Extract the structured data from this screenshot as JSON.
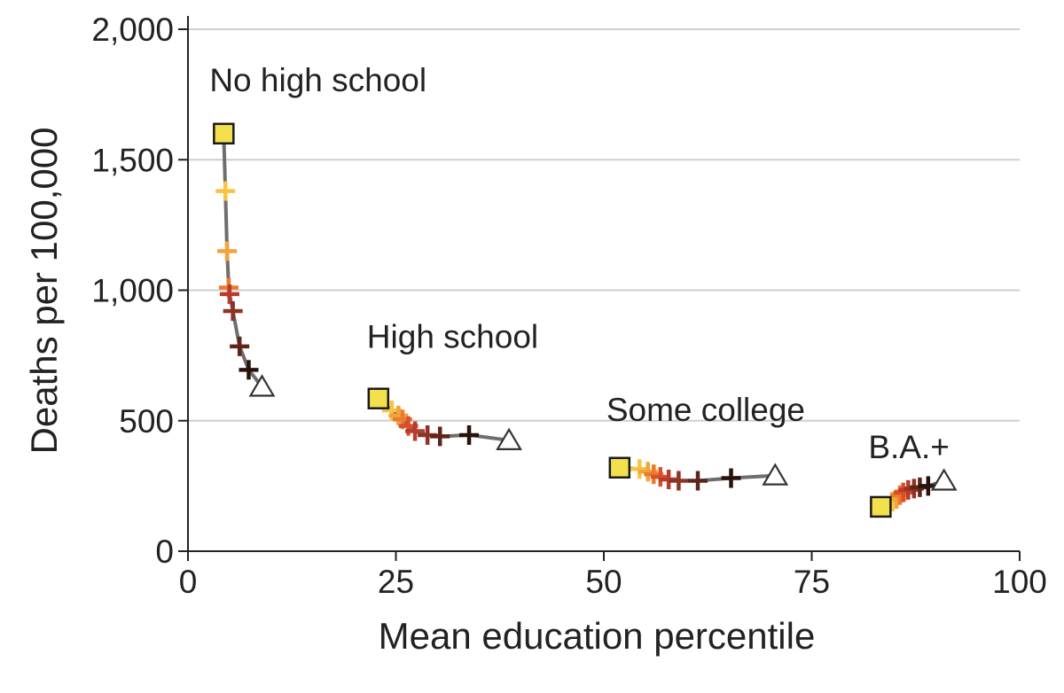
{
  "chart_data": {
    "type": "line",
    "title": "",
    "xlabel": "Mean education percentile",
    "ylabel": "Deaths per 100,000",
    "xlim": [
      0,
      100
    ],
    "ylim": [
      0,
      2000
    ],
    "x_ticks": [
      0,
      25,
      50,
      75,
      100
    ],
    "x_tick_labels": [
      "0",
      "25",
      "50",
      "75",
      "100"
    ],
    "y_ticks": [
      0,
      500,
      1000,
      1500,
      2000
    ],
    "y_tick_labels": [
      "0",
      "500",
      "1,000",
      "1,500",
      "2,000"
    ],
    "grid": "horizontal",
    "colors": {
      "line": "#6e6e6e",
      "start_marker_fill": "#f2e14c",
      "end_marker_stroke": "#333333",
      "grid": "#cfcfcf",
      "axis": "#222222",
      "gradient": [
        "#f6c342",
        "#f3a33a",
        "#ec7a2d",
        "#d9502a",
        "#b83b2e",
        "#8f3326",
        "#5e2418",
        "#2a120c"
      ]
    },
    "marker_legend": {
      "start": "square",
      "intermediate": "plus",
      "end": "triangle"
    },
    "series": [
      {
        "name": "No high school",
        "points": [
          [
            4.3,
            1600
          ],
          [
            4.5,
            1380
          ],
          [
            4.7,
            1150
          ],
          [
            4.9,
            1010
          ],
          [
            5.0,
            985
          ],
          [
            5.4,
            920
          ],
          [
            6.2,
            785
          ],
          [
            7.3,
            695
          ],
          [
            8.9,
            630
          ]
        ]
      },
      {
        "name": "High school",
        "points": [
          [
            22.9,
            585
          ],
          [
            24.5,
            540
          ],
          [
            25.3,
            520
          ],
          [
            25.8,
            505
          ],
          [
            26.5,
            480
          ],
          [
            27.3,
            460
          ],
          [
            28.8,
            445
          ],
          [
            30.3,
            440
          ],
          [
            33.8,
            445
          ],
          [
            38.6,
            425
          ]
        ]
      },
      {
        "name": "Some college",
        "points": [
          [
            51.9,
            320
          ],
          [
            54.3,
            315
          ],
          [
            55.3,
            305
          ],
          [
            56.0,
            295
          ],
          [
            56.8,
            285
          ],
          [
            57.8,
            275
          ],
          [
            59.0,
            270
          ],
          [
            61.3,
            270
          ],
          [
            65.3,
            280
          ],
          [
            70.6,
            290
          ]
        ]
      },
      {
        "name": "B.A.+",
        "points": [
          [
            83.3,
            170
          ],
          [
            84.7,
            190
          ],
          [
            85.2,
            200
          ],
          [
            85.6,
            215
          ],
          [
            86.0,
            225
          ],
          [
            86.6,
            235
          ],
          [
            87.3,
            240
          ],
          [
            88.0,
            245
          ],
          [
            89.0,
            250
          ],
          [
            90.9,
            270
          ]
        ]
      }
    ]
  }
}
